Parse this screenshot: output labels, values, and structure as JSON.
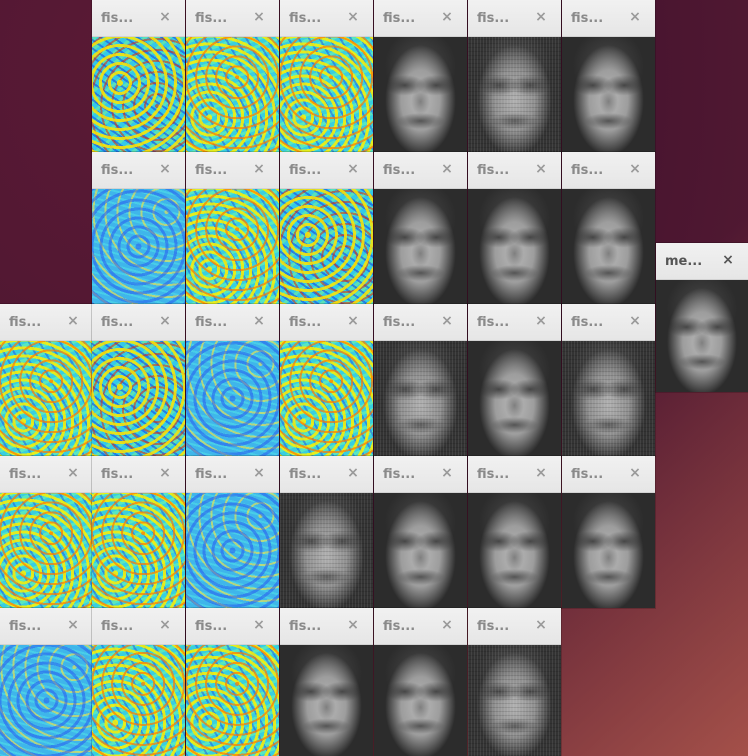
{
  "desktop": {
    "background_colors": [
      "#4a1530",
      "#5a1a35",
      "#de785a"
    ]
  },
  "windows": {
    "fisher_title": "fis...",
    "mean_title": "me...",
    "close_glyph": "×"
  }
}
